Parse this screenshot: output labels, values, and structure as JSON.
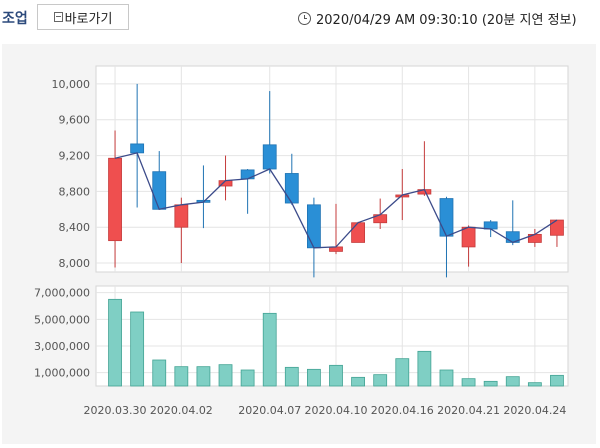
{
  "header": {
    "title": "조업",
    "back_label": "바로가기",
    "timestamp": "2020/04/29 AM 09:30:10 (20분 지연 정보)"
  },
  "colors": {
    "up": "#ef4f4f",
    "down": "#2a8fd6",
    "ma": "#3c4b8a",
    "volume": "#7fcfc4",
    "volume_edge": "#43a394"
  },
  "chart_data": [
    {
      "type": "candlestick",
      "ylim": [
        7900,
        10200
      ],
      "y_ticks": [
        8000,
        8400,
        8800,
        9200,
        9600,
        10000
      ],
      "y_tick_labels": [
        "8,000",
        "8,400",
        "8,800",
        "9,200",
        "9,600",
        "10,000"
      ],
      "x_tick_labels": [
        "2020.03.30",
        "2020.04.02",
        "2020.04.07",
        "2020.04.10",
        "2020.04.16",
        "2020.04.21",
        "2020.04.24"
      ],
      "x_tick_indices": [
        0,
        3,
        7,
        10,
        13,
        16,
        19
      ],
      "candles": [
        {
          "open": 8250,
          "close": 9170,
          "high": 9480,
          "low": 7950
        },
        {
          "open": 9330,
          "close": 9230,
          "high": 10000,
          "low": 8620
        },
        {
          "open": 9020,
          "close": 8600,
          "high": 9250,
          "low": 8600
        },
        {
          "open": 8400,
          "close": 8650,
          "high": 8730,
          "low": 8000
        },
        {
          "open": 8700,
          "close": 8680,
          "high": 9090,
          "low": 8390
        },
        {
          "open": 8860,
          "close": 8920,
          "high": 9200,
          "low": 8700
        },
        {
          "open": 9040,
          "close": 8940,
          "high": 9050,
          "low": 8550
        },
        {
          "open": 9320,
          "close": 9050,
          "high": 9920,
          "low": 9000
        },
        {
          "open": 9000,
          "close": 8670,
          "high": 9220,
          "low": 8650
        },
        {
          "open": 8650,
          "close": 8170,
          "high": 8730,
          "low": 7840
        },
        {
          "open": 8130,
          "close": 8180,
          "high": 8660,
          "low": 8100
        },
        {
          "open": 8230,
          "close": 8450,
          "high": 8460,
          "low": 8230
        },
        {
          "open": 8450,
          "close": 8540,
          "high": 8720,
          "low": 8380
        },
        {
          "open": 8740,
          "close": 8760,
          "high": 9050,
          "low": 8480
        },
        {
          "open": 8770,
          "close": 8820,
          "high": 9360,
          "low": 8750
        },
        {
          "open": 8720,
          "close": 8300,
          "high": 8740,
          "low": 7840
        },
        {
          "open": 8180,
          "close": 8400,
          "high": 8420,
          "low": 7960
        },
        {
          "open": 8460,
          "close": 8380,
          "high": 8480,
          "low": 8290
        },
        {
          "open": 8350,
          "close": 8230,
          "high": 8700,
          "low": 8200
        },
        {
          "open": 8230,
          "close": 8320,
          "high": 8380,
          "low": 8180
        },
        {
          "open": 8310,
          "close": 8480,
          "high": 8480,
          "low": 8180
        }
      ],
      "moving_average": [
        9170,
        9230,
        8600,
        8650,
        8680,
        8920,
        8940,
        9050,
        8670,
        8170,
        8180,
        8450,
        8540,
        8760,
        8820,
        8300,
        8400,
        8380,
        8230,
        8320,
        8480
      ]
    },
    {
      "type": "bar",
      "ylim": [
        0,
        7500000
      ],
      "y_ticks": [
        1000000,
        3000000,
        5000000,
        7000000
      ],
      "y_tick_labels": [
        "1,000,000",
        "3,000,000",
        "5,000,000",
        "7,000,000"
      ],
      "values": [
        6500000,
        5550000,
        1950000,
        1450000,
        1450000,
        1600000,
        1200000,
        5450000,
        1400000,
        1250000,
        1550000,
        650000,
        850000,
        2050000,
        2600000,
        1200000,
        550000,
        350000,
        700000,
        250000,
        800000
      ]
    }
  ]
}
